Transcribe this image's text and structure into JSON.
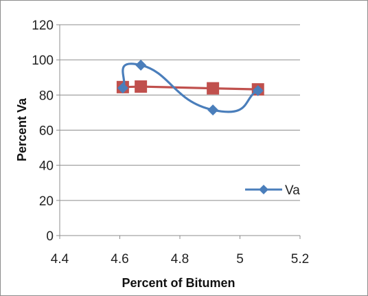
{
  "chart_data": {
    "type": "scatter",
    "title": "",
    "xlabel": "Percent of Bitumen",
    "ylabel": "Percent Va",
    "xlim": [
      4.4,
      5.2
    ],
    "ylim": [
      0,
      120
    ],
    "xticks": [
      "4.4",
      "4.6",
      "4.8",
      "5",
      "5.2"
    ],
    "yticks": [
      "0",
      "20",
      "40",
      "60",
      "80",
      "100",
      "120"
    ],
    "grid": "horizontal",
    "legend_position": "right",
    "series": [
      {
        "name": "Va",
        "color": "#4a7ebb",
        "marker": "diamond",
        "line": "smooth",
        "x": [
          4.61,
          4.67,
          4.91,
          5.06
        ],
        "y": [
          84,
          97,
          71.5,
          82.5
        ]
      },
      {
        "name": "",
        "color": "#c0504d",
        "marker": "square",
        "line": "straight",
        "x": [
          4.61,
          4.67,
          4.91,
          5.06
        ],
        "y": [
          84.5,
          84.8,
          83.8,
          83.2
        ]
      }
    ]
  }
}
